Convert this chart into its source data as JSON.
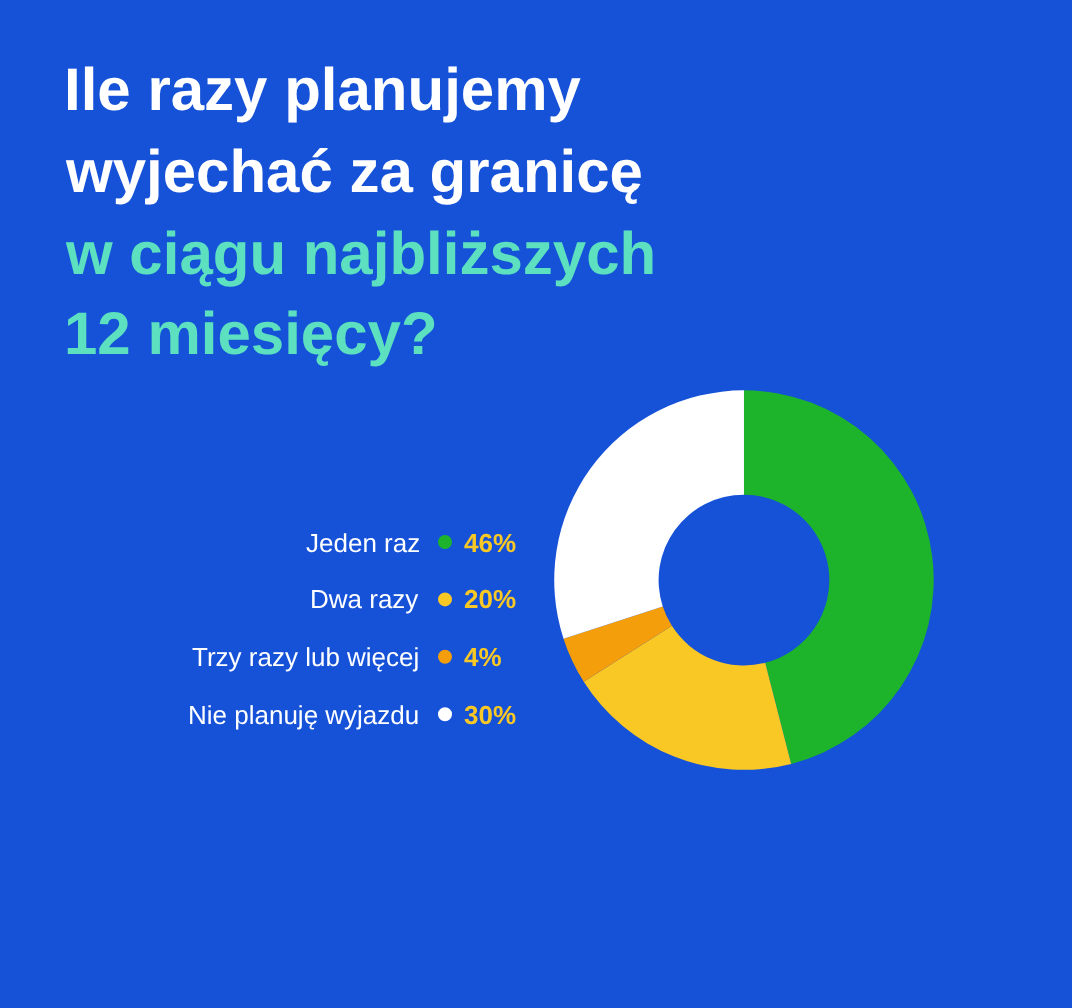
{
  "chart_data": {
    "type": "donut",
    "title": "Ile razy planujemy wyjechać za granicę",
    "subtitle": "w ciągu najbliższych 12 miesięcy?",
    "categories": [
      "Jeden raz",
      "Dwa razy",
      "Trzy razy lub więcej",
      "Nie planuję wyjazdu"
    ],
    "values": [
      46,
      20,
      4,
      30
    ],
    "colors": [
      "#1db42b",
      "#f9c825",
      "#f59e0b",
      "#ffffff"
    ],
    "value_labels": [
      "46%",
      "20%",
      "4%",
      "30%"
    ],
    "legend": "left"
  }
}
